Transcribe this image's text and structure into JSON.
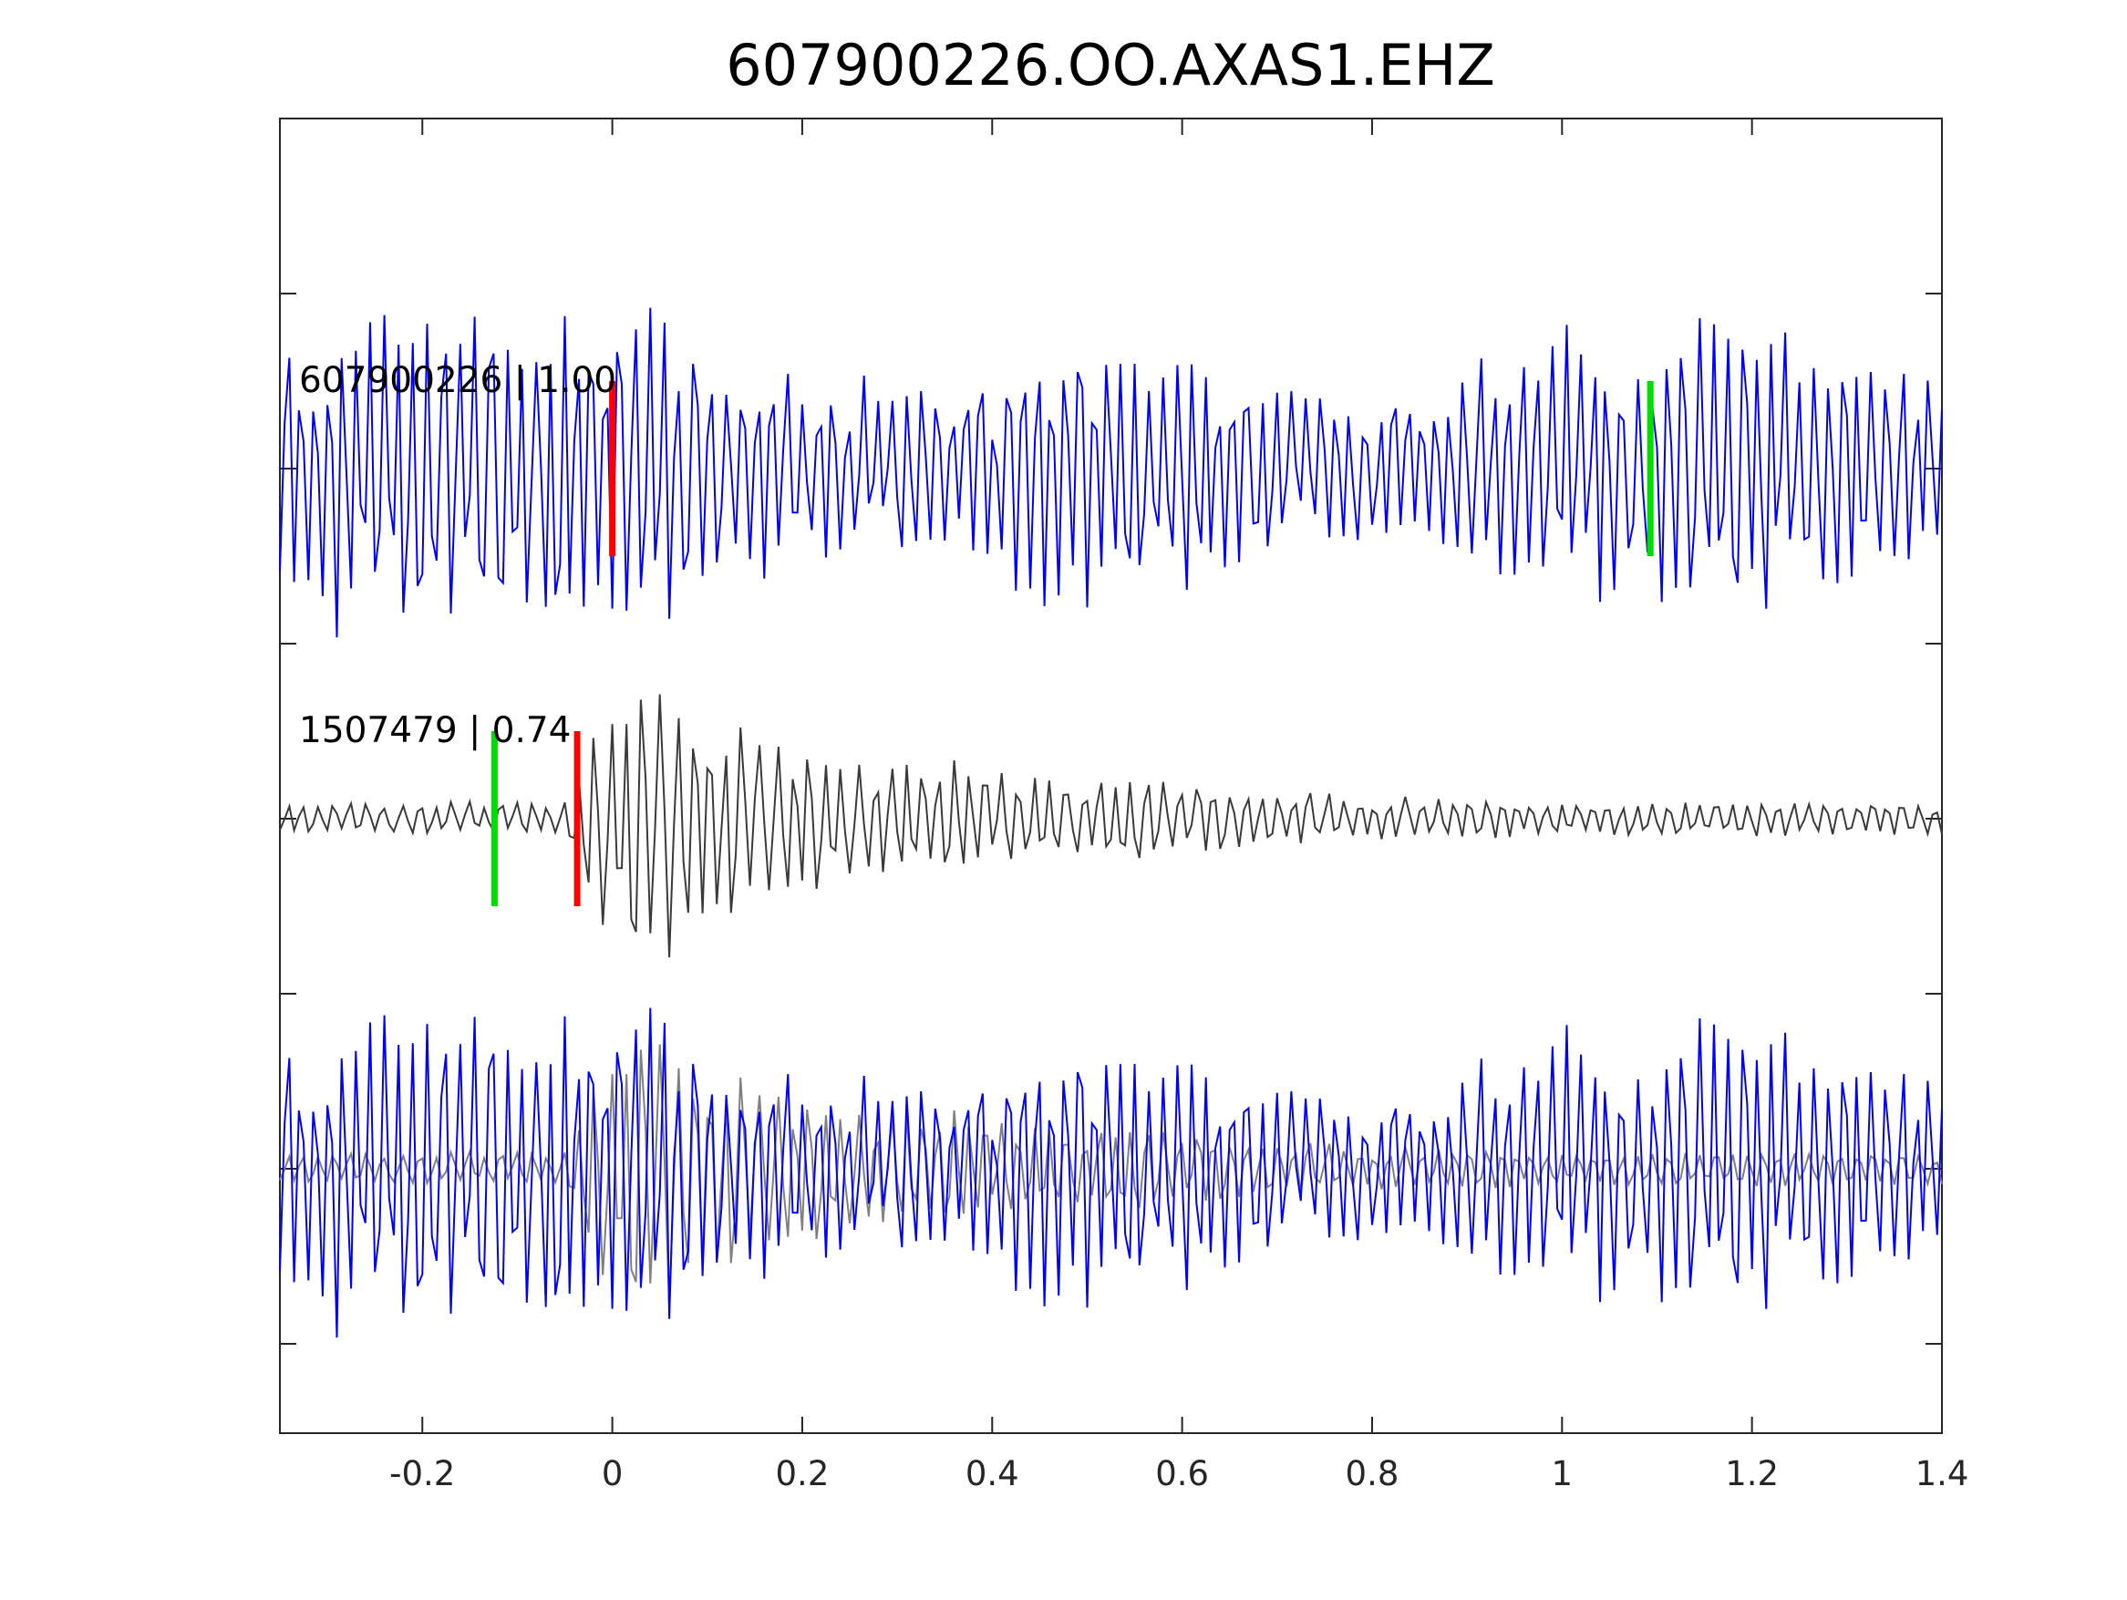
{
  "chart_data": {
    "type": "line",
    "title": "607900226.OO.AXAS1.EHZ",
    "xlabel": "",
    "ylabel": "",
    "xlim": [
      -0.35,
      1.4
    ],
    "x_ticks": [
      -0.2,
      0,
      0.2,
      0.4,
      0.6,
      0.8,
      1,
      1.2,
      1.4
    ],
    "x_tick_labels": [
      "-0.2",
      "0",
      "0.2",
      "0.4",
      "0.6",
      "0.8",
      "1",
      "1.2",
      "1.4"
    ],
    "sample_interval": 0.005,
    "grid": false,
    "legend": "none",
    "colors": {
      "primary_trace": "#0000ff",
      "template_trace": "#3a3a3a",
      "overlay_template": "#808080",
      "p_pick": "#ff0000",
      "s_pick": "#00dd00",
      "axes": "#262626"
    },
    "traces": [
      {
        "label": "607900226 | 1.00",
        "event_id": "607900226",
        "correlation": "1.00",
        "row": 1,
        "color": "#0000ff",
        "p_pick": 0.0,
        "s_pick": 1.093,
        "envelope": [
          [
            -0.35,
            0.9
          ],
          [
            0.0,
            1.0
          ],
          [
            0.2,
            0.55
          ],
          [
            0.35,
            0.55
          ],
          [
            0.5,
            0.85
          ],
          [
            0.7,
            0.55
          ],
          [
            0.85,
            0.45
          ],
          [
            0.95,
            0.85
          ],
          [
            1.1,
            0.75
          ],
          [
            1.15,
            0.95
          ],
          [
            1.4,
            0.55
          ]
        ]
      },
      {
        "label": "1507479 | 0.74",
        "event_id": "1507479",
        "correlation": "0.74",
        "row": 2,
        "color": "#3a3a3a",
        "p_pick": -0.037,
        "s_pick": -0.124,
        "envelope": [
          [
            -0.35,
            0.08
          ],
          [
            -0.05,
            0.1
          ],
          [
            -0.02,
            0.55
          ],
          [
            0.0,
            1.0
          ],
          [
            0.05,
            0.75
          ],
          [
            0.2,
            0.45
          ],
          [
            0.4,
            0.3
          ],
          [
            0.65,
            0.2
          ],
          [
            0.8,
            0.12
          ],
          [
            1.0,
            0.1
          ],
          [
            1.4,
            0.1
          ]
        ]
      },
      {
        "label": "",
        "row": 3,
        "overlay": true,
        "components": [
          "607900226",
          "1507479"
        ]
      }
    ]
  }
}
